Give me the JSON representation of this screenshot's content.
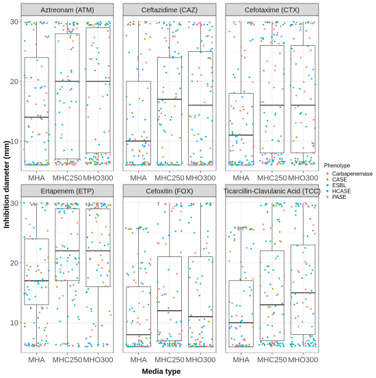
{
  "chart_data": {
    "type": "box-jitter",
    "xlabel": "Media type",
    "ylabel": "Inhibition diameter (mm)",
    "ylim": [
      5,
      31
    ],
    "yticks": [
      10,
      20,
      30
    ],
    "categories": [
      "MHA",
      "MHC250",
      "MHO300"
    ],
    "legend": {
      "title": "Phenotype",
      "placement": "right",
      "entries": [
        {
          "name": "Carbapenemase",
          "color": "#F8766D"
        },
        {
          "name": "CASE",
          "color": "#A3A500"
        },
        {
          "name": "ESBL",
          "color": "#00BF7D"
        },
        {
          "name": "HCASE",
          "color": "#00B0F6"
        },
        {
          "name": "PASE",
          "color": "#E76BF3"
        }
      ]
    },
    "panels": [
      {
        "title": "Aztreonam (ATM)",
        "boxes": [
          {
            "category": "MHA",
            "min": 6,
            "q1": 6,
            "median": 14,
            "q3": 24,
            "max": 30
          },
          {
            "category": "MHC250",
            "min": 6,
            "q1": 7,
            "median": 20,
            "q3": 28,
            "max": 30
          },
          {
            "category": "MHO300",
            "min": 6,
            "q1": 8,
            "median": 20,
            "q3": 29,
            "max": 30
          }
        ]
      },
      {
        "title": "Ceftazidime (CAZ)",
        "boxes": [
          {
            "category": "MHA",
            "min": 6,
            "q1": 6,
            "median": 10,
            "q3": 20,
            "max": 30
          },
          {
            "category": "MHC250",
            "min": 6,
            "q1": 6,
            "median": 17,
            "q3": 24,
            "max": 30
          },
          {
            "category": "MHO300",
            "min": 6,
            "q1": 6,
            "median": 16,
            "q3": 25,
            "max": 30
          }
        ]
      },
      {
        "title": "Cefotaxime (CTX)",
        "boxes": [
          {
            "category": "MHA",
            "min": 6,
            "q1": 6,
            "median": 11,
            "q3": 18,
            "max": 30
          },
          {
            "category": "MHC250",
            "min": 6,
            "q1": 8,
            "median": 16,
            "q3": 26,
            "max": 30
          },
          {
            "category": "MHO300",
            "min": 6,
            "q1": 8,
            "median": 16,
            "q3": 26,
            "max": 30
          }
        ]
      },
      {
        "title": "Ertapenem (ETP)",
        "boxes": [
          {
            "category": "MHA",
            "min": 6,
            "q1": 13,
            "median": 17,
            "q3": 24,
            "max": 30
          },
          {
            "category": "MHC250",
            "min": 6,
            "q1": 17,
            "median": 22,
            "q3": 29,
            "max": 30
          },
          {
            "category": "MHO300",
            "min": 6,
            "q1": 16,
            "median": 22,
            "q3": 29,
            "max": 30
          }
        ]
      },
      {
        "title": "Cefoxitin (FOX)",
        "boxes": [
          {
            "category": "MHA",
            "min": 6,
            "q1": 6,
            "median": 8,
            "q3": 16,
            "max": 26
          },
          {
            "category": "MHC250",
            "min": 6,
            "q1": 7,
            "median": 12,
            "q3": 21,
            "max": 30
          },
          {
            "category": "MHO300",
            "min": 6,
            "q1": 6,
            "median": 11,
            "q3": 21,
            "max": 30
          }
        ]
      },
      {
        "title": "Ticarcillin-Clavulanic Acid (TCC)",
        "boxes": [
          {
            "category": "MHA",
            "min": 6,
            "q1": 6,
            "median": 10,
            "q3": 17,
            "max": 26
          },
          {
            "category": "MHC250",
            "min": 6,
            "q1": 7,
            "median": 13,
            "q3": 22,
            "max": 30
          },
          {
            "category": "MHO300",
            "min": 6,
            "q1": 8,
            "median": 15,
            "q3": 23,
            "max": 30
          }
        ]
      }
    ]
  }
}
